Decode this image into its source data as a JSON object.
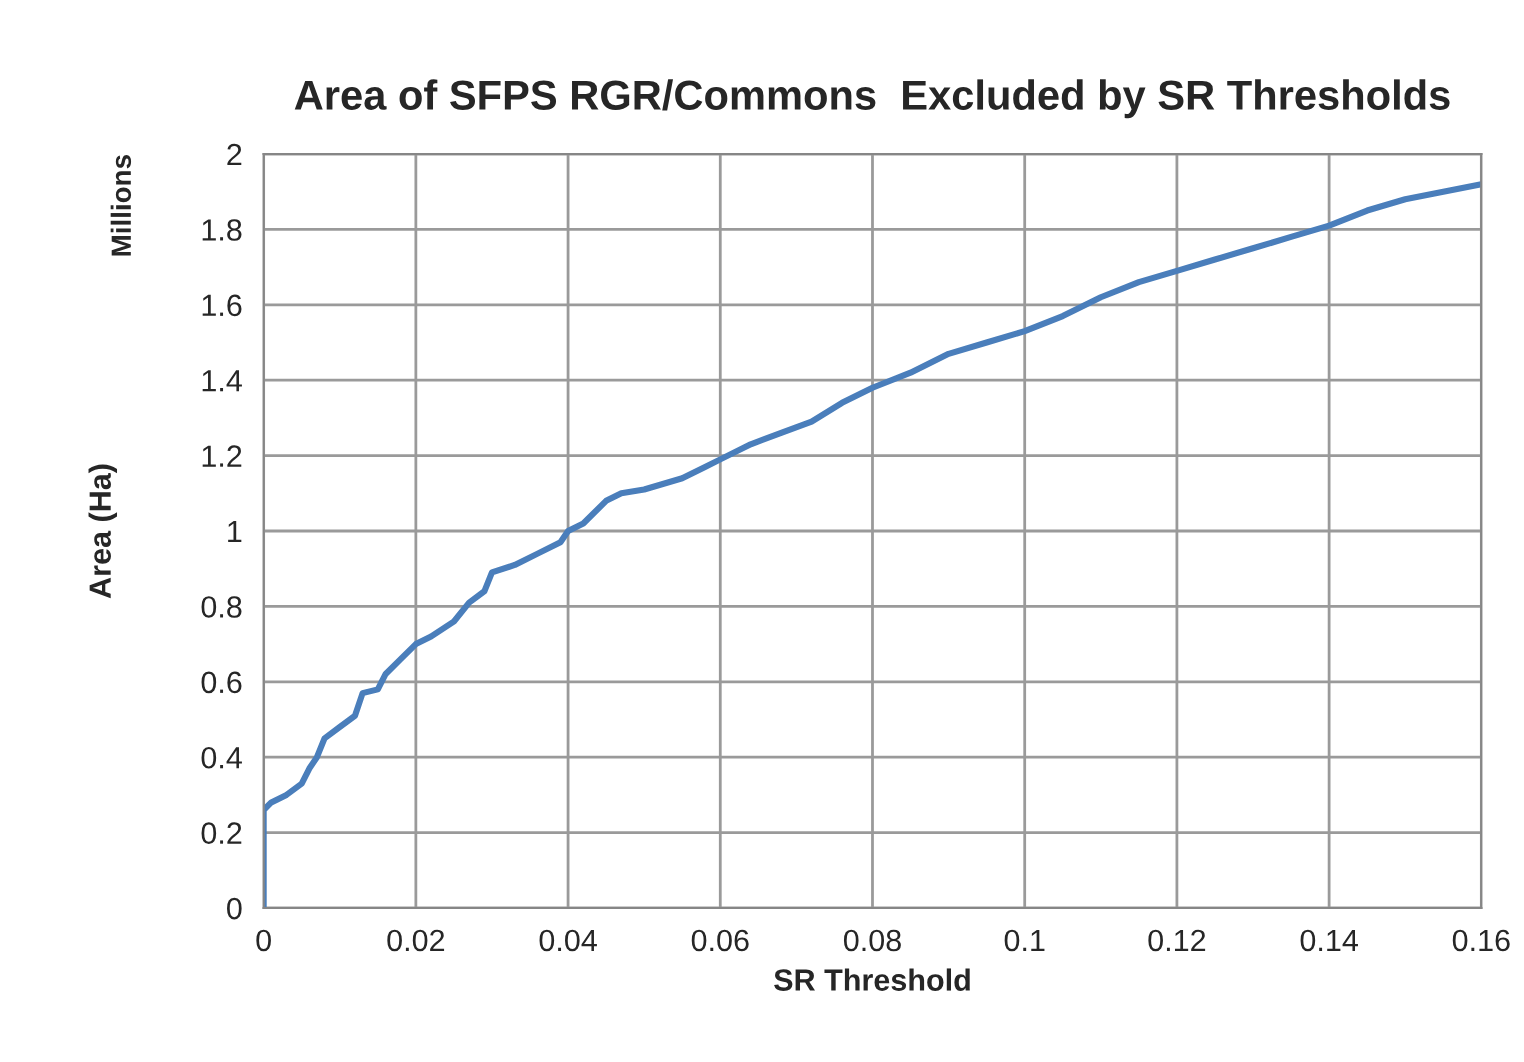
{
  "chart_data": {
    "type": "line",
    "title": "Area of SFPS RGR/Commons  Excluded by SR Thresholds",
    "xlabel": "SR Threshold",
    "ylabel": "Area (Ha)",
    "annotations": [
      "Millions"
    ],
    "series": [
      {
        "color": "#4a7ebb",
        "x": [
          0,
          0,
          0.001,
          0.003,
          0.005,
          0.006,
          0.007,
          0.008,
          0.01,
          0.012,
          0.013,
          0.015,
          0.016,
          0.018,
          0.02,
          0.022,
          0.025,
          0.027,
          0.029,
          0.03,
          0.033,
          0.036,
          0.039,
          0.04,
          0.042,
          0.045,
          0.047,
          0.05,
          0.055,
          0.058,
          0.06,
          0.064,
          0.068,
          0.072,
          0.076,
          0.08,
          0.085,
          0.09,
          0.095,
          0.1,
          0.105,
          0.11,
          0.115,
          0.12,
          0.125,
          0.13,
          0.135,
          0.14,
          0.145,
          0.15,
          0.155,
          0.16
        ],
        "values": [
          0,
          0.26,
          0.28,
          0.3,
          0.33,
          0.37,
          0.4,
          0.45,
          0.48,
          0.51,
          0.57,
          0.58,
          0.62,
          0.66,
          0.7,
          0.72,
          0.76,
          0.81,
          0.84,
          0.89,
          0.91,
          0.94,
          0.97,
          1.0,
          1.02,
          1.08,
          1.1,
          1.11,
          1.14,
          1.17,
          1.19,
          1.23,
          1.26,
          1.29,
          1.34,
          1.38,
          1.42,
          1.47,
          1.5,
          1.53,
          1.57,
          1.62,
          1.66,
          1.69,
          1.72,
          1.75,
          1.78,
          1.81,
          1.85,
          1.88,
          1.9,
          1.92
        ]
      }
    ],
    "xlim": [
      0,
      0.16
    ],
    "xticks": [
      0,
      0.02,
      0.04,
      0.06,
      0.08,
      0.1,
      0.12,
      0.14,
      0.16
    ],
    "ylim": [
      0,
      2
    ],
    "yticks": [
      0,
      0.2,
      0.4,
      0.6,
      0.8,
      1,
      1.2,
      1.4,
      1.6,
      1.8,
      2
    ],
    "grid": true,
    "legend": false,
    "marker": "none",
    "line_style": "solid"
  }
}
